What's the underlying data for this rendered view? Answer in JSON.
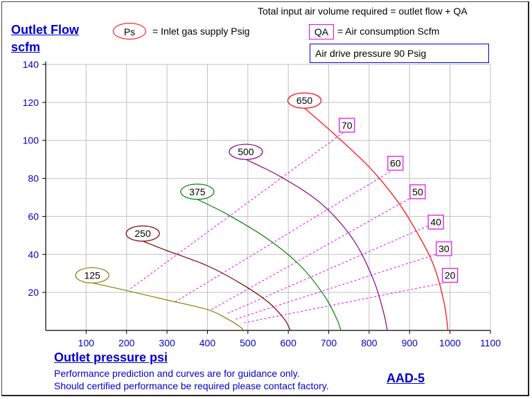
{
  "header": {
    "note": "Total input air volume required = outlet flow + QA",
    "ps_symbol": "Ps",
    "ps_text": "= Inlet gas supply  Psig",
    "qa_symbol": "QA",
    "qa_text": "= Air consumption  Scfm",
    "drive": "Air drive pressure  90 Psig"
  },
  "footer": {
    "line1": "Performance prediction and curves are for guidance only.",
    "line2": "Should certified performance be required please contact factory.",
    "model": "AAD-5"
  },
  "colors": {
    "axis_text": "#0000cc",
    "grid": "#c0c0c0",
    "air_line": "#ee00ee"
  },
  "chart_data": {
    "type": "line",
    "title": "",
    "xlabel": "Outlet pressure   psi",
    "ylabel_line1": "Outlet Flow",
    "ylabel_line2": "scfm",
    "xlim": [
      0,
      1100
    ],
    "ylim": [
      0,
      140
    ],
    "xticks": [
      100,
      200,
      300,
      400,
      500,
      600,
      700,
      800,
      900,
      1000,
      1100
    ],
    "yticks": [
      20,
      40,
      60,
      80,
      100,
      120,
      140
    ],
    "grid": true,
    "series": [
      {
        "name": "125",
        "color": "#808000",
        "label_pos": [
          115,
          29
        ],
        "points": [
          [
            115,
            25
          ],
          [
            200,
            21
          ],
          [
            300,
            16
          ],
          [
            400,
            11
          ],
          [
            450,
            6
          ],
          [
            480,
            2
          ],
          [
            490,
            0
          ]
        ]
      },
      {
        "name": "250",
        "color": "#800000",
        "label_pos": [
          240,
          51
        ],
        "points": [
          [
            240,
            47
          ],
          [
            300,
            42
          ],
          [
            400,
            34
          ],
          [
            480,
            25
          ],
          [
            550,
            15
          ],
          [
            590,
            6
          ],
          [
            605,
            0
          ]
        ]
      },
      {
        "name": "375",
        "color": "#008000",
        "label_pos": [
          375,
          73
        ],
        "points": [
          [
            375,
            69
          ],
          [
            450,
            61
          ],
          [
            550,
            48
          ],
          [
            630,
            34
          ],
          [
            690,
            18
          ],
          [
            720,
            6
          ],
          [
            730,
            0
          ]
        ]
      },
      {
        "name": "500",
        "color": "#800080",
        "label_pos": [
          495,
          94
        ],
        "points": [
          [
            495,
            90
          ],
          [
            580,
            81
          ],
          [
            680,
            67
          ],
          [
            760,
            48
          ],
          [
            810,
            27
          ],
          [
            835,
            10
          ],
          [
            845,
            0
          ]
        ]
      },
      {
        "name": "650",
        "color": "#ff0000",
        "label_pos": [
          640,
          121
        ],
        "points": [
          [
            640,
            117
          ],
          [
            710,
            104
          ],
          [
            800,
            86
          ],
          [
            870,
            68
          ],
          [
            920,
            51
          ],
          [
            960,
            34
          ],
          [
            985,
            15
          ],
          [
            995,
            0
          ]
        ]
      }
    ],
    "air_consumption": [
      {
        "label": "70",
        "label_pos": [
          745,
          108
        ],
        "start": [
          210,
          22
        ],
        "end": [
          735,
          104
        ]
      },
      {
        "label": "60",
        "label_pos": [
          865,
          88
        ],
        "start": [
          320,
          15
        ],
        "end": [
          855,
          84
        ]
      },
      {
        "label": "50",
        "label_pos": [
          920,
          73
        ],
        "start": [
          410,
          11
        ],
        "end": [
          905,
          70
        ]
      },
      {
        "label": "40",
        "label_pos": [
          965,
          57
        ],
        "start": [
          450,
          9
        ],
        "end": [
          945,
          55
        ]
      },
      {
        "label": "30",
        "label_pos": [
          985,
          43
        ],
        "start": [
          470,
          6
        ],
        "end": [
          965,
          40
        ]
      },
      {
        "label": "20",
        "label_pos": [
          1000,
          29
        ],
        "start": [
          490,
          4
        ],
        "end": [
          985,
          25
        ]
      }
    ]
  }
}
